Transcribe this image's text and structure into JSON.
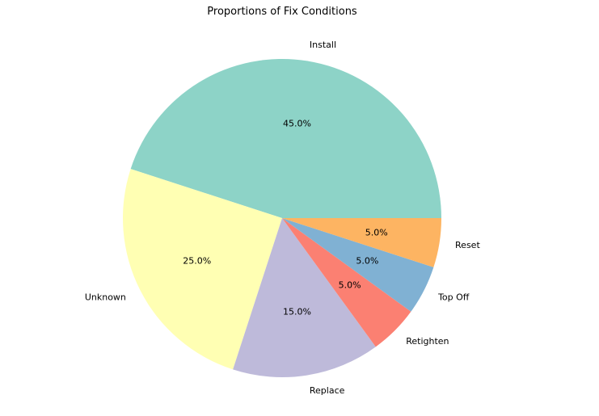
{
  "chart_data": {
    "type": "pie",
    "title": "Proportions of Fix Conditions",
    "start_angle_deg": 0,
    "direction": "counterclockwise",
    "slices": [
      {
        "label": "Install",
        "value": 45.0,
        "pct_label": "45.0%",
        "color": "#8dd3c7"
      },
      {
        "label": "Unknown",
        "value": 25.0,
        "pct_label": "25.0%",
        "color": "#ffffb3"
      },
      {
        "label": "Replace",
        "value": 15.0,
        "pct_label": "15.0%",
        "color": "#bebada"
      },
      {
        "label": "Retighten",
        "value": 5.0,
        "pct_label": "5.0%",
        "color": "#fb8072"
      },
      {
        "label": "Top Off",
        "value": 5.0,
        "pct_label": "5.0%",
        "color": "#80b1d3"
      },
      {
        "label": "Reset",
        "value": 5.0,
        "pct_label": "5.0%",
        "color": "#fdb462"
      }
    ]
  }
}
